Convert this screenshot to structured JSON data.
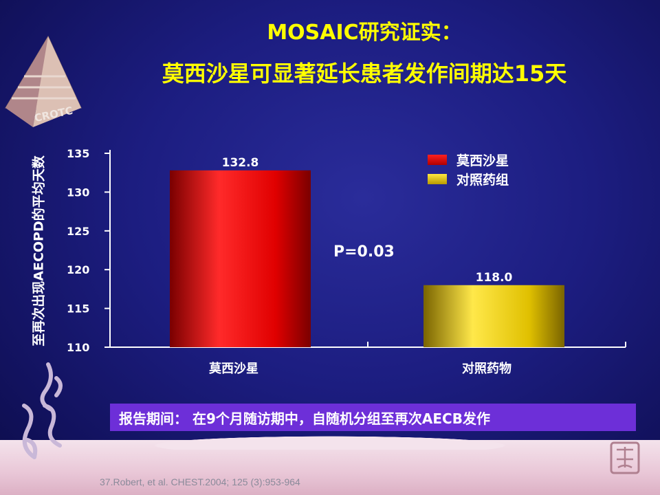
{
  "slide": {
    "title_line1": "MOSAIC研究证实：",
    "title_line2": "莫西沙星可显著延长患者发作间期达15天",
    "logo_text": "CROTC",
    "p_value": "P=0.03",
    "report_text": "报告期间：  在9个月随访期中，自随机分组至再次AECB发作",
    "citation": "37.Robert,  et al. CHEST.2004; 125 (3):953-964",
    "colors": {
      "background": "#1c1d80",
      "title": "#ffff00",
      "report_box": "#6d2fd8"
    }
  },
  "chart_data": {
    "type": "bar",
    "categories": [
      "莫西沙星",
      "对照药物"
    ],
    "values": [
      132.8,
      118.0
    ],
    "value_labels": [
      "132.8",
      "118.0"
    ],
    "colors": [
      "#e00000",
      "#e0c000"
    ],
    "ylabel": "至再次出现AECOPD的平均天数",
    "ylim": [
      110,
      135
    ],
    "yticks": [
      110,
      115,
      120,
      125,
      130,
      135
    ],
    "legend": {
      "position": "top-right",
      "entries": [
        {
          "label": "莫西沙星",
          "color": "#e00000"
        },
        {
          "label": "对照药组",
          "color": "#e0c000"
        }
      ]
    },
    "grid": false
  }
}
